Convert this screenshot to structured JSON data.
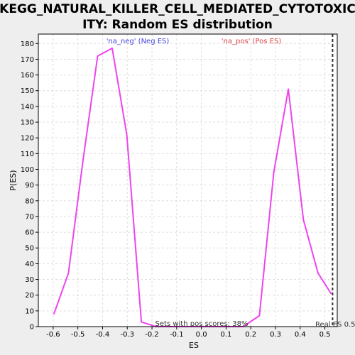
{
  "chart_data": {
    "type": "line",
    "title_lines": [
      "KEGG_NATURAL_KILLER_CELL_MEDIATED_CYTOTOXIC",
      "ITY: Random ES distribution"
    ],
    "xlabel": "ES",
    "ylabel": "P(ES)",
    "xlim": [
      -0.66,
      0.55
    ],
    "ylim": [
      0,
      186
    ],
    "x_ticks": [
      -0.6,
      -0.5,
      -0.4,
      -0.3,
      -0.2,
      -0.1,
      0.0,
      0.1,
      0.2,
      0.3,
      0.4,
      0.5
    ],
    "x_tick_labels": [
      "-0.6",
      "-0.5",
      "-0.4",
      "-0.3",
      "-0.2",
      "-0.1",
      "0.0",
      "0.1",
      "0.2",
      "0.3",
      "0.4",
      "0.5"
    ],
    "y_ticks": [
      0,
      10,
      20,
      30,
      40,
      50,
      60,
      70,
      80,
      90,
      100,
      110,
      120,
      130,
      140,
      150,
      160,
      170,
      180
    ],
    "grid": true,
    "series": [
      {
        "color": "#ee44ee",
        "x": [
          -0.597,
          -0.538,
          -0.479,
          -0.42,
          -0.361,
          -0.302,
          -0.243,
          -0.184,
          -0.125,
          0.17,
          0.235,
          0.293,
          0.352,
          0.413,
          0.472,
          0.525
        ],
        "y": [
          8,
          34,
          106,
          172,
          177,
          122,
          3,
          0,
          0,
          0,
          7,
          98,
          151,
          68,
          34,
          21
        ]
      }
    ],
    "legend": [
      {
        "label": "'na_neg' (Neg ES)",
        "color": "#4444dd",
        "placement": "top-left"
      },
      {
        "label": "'na_pos' (Pos ES)",
        "color": "#dd4444",
        "placement": "top-right"
      }
    ],
    "annotations": {
      "pos_scores": "Sets with pos scores: 38%",
      "real_es_label": "Real ES 0.5",
      "real_es_value": 0.531
    }
  },
  "colors": {
    "background": "#eeeeee",
    "plot_background": "#ffffff",
    "grid": "#dddddd",
    "line": "#ee44ee",
    "real_es_line": "#333333"
  }
}
